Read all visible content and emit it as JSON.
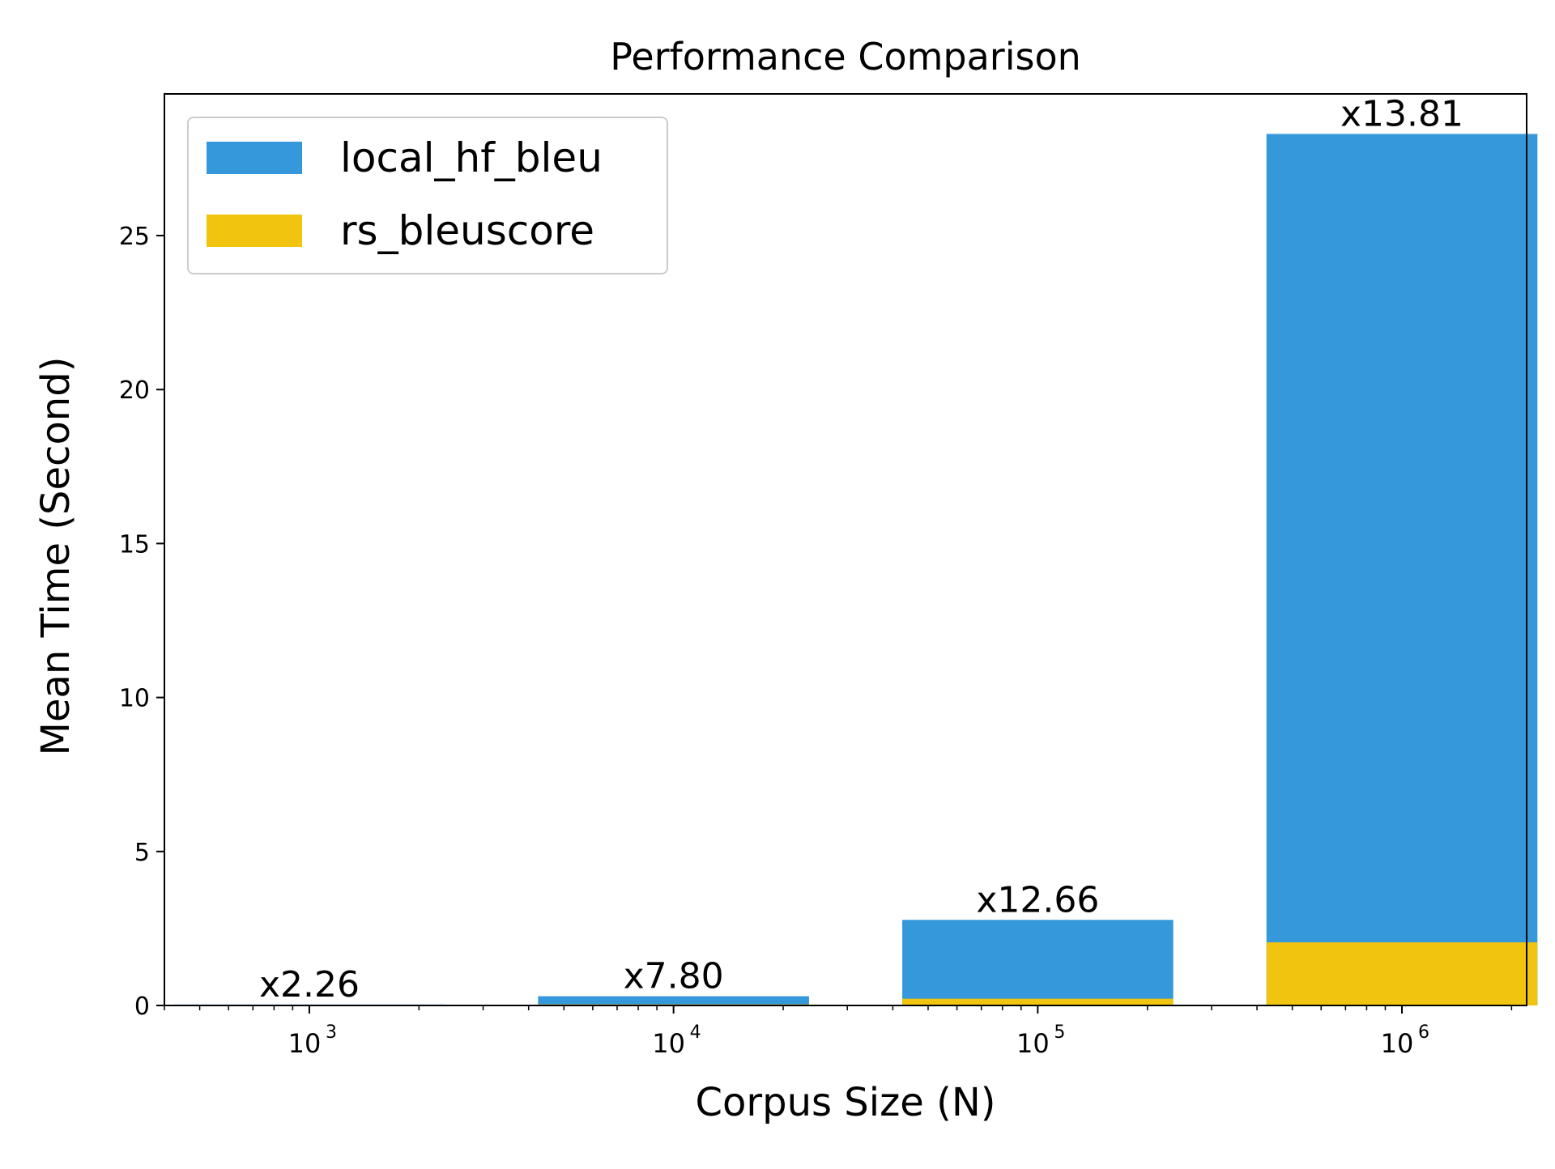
{
  "chart_data": {
    "type": "bar",
    "title": "Performance Comparison",
    "xlabel": "Corpus Size (N)",
    "ylabel": "Mean Time (Second)",
    "x_scale": "log",
    "xlim": [
      400,
      2200000
    ],
    "ylim": [
      0,
      29.6
    ],
    "x": [
      1000,
      10000,
      100000,
      1000000
    ],
    "x_ticks": [
      {
        "value": 1000,
        "base": "10",
        "exp": "3"
      },
      {
        "value": 10000,
        "base": "10",
        "exp": "4"
      },
      {
        "value": 100000,
        "base": "10",
        "exp": "5"
      },
      {
        "value": 1000000,
        "base": "10",
        "exp": "6"
      }
    ],
    "y_ticks": [
      0,
      5,
      10,
      15,
      20,
      25
    ],
    "grid": false,
    "legend_position": "top-left",
    "series": [
      {
        "name": "local_hf_bleu",
        "color": "#3498db",
        "values": [
          0.03,
          0.3,
          2.78,
          28.3
        ]
      },
      {
        "name": "rs_bleuscore",
        "color": "#f1c40f",
        "values": [
          0.013,
          0.038,
          0.22,
          2.05
        ]
      }
    ],
    "annotations": [
      "x2.26",
      "x7.80",
      "x12.66",
      "x13.81"
    ]
  }
}
